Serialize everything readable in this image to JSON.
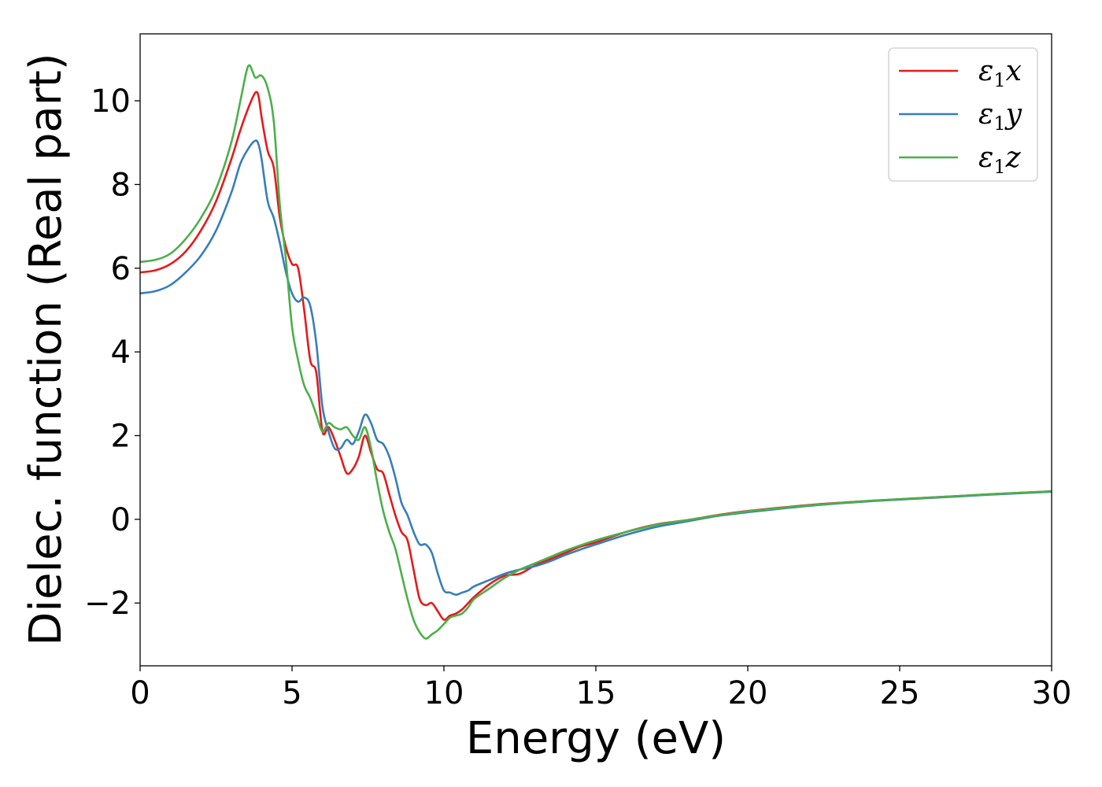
{
  "chart_data": {
    "type": "line",
    "title": "",
    "xlabel": "Energy (eV)",
    "ylabel": "Dielec. function (Real part)",
    "xlim": [
      0,
      30
    ],
    "ylim": [
      -3.5,
      11.6
    ],
    "xticks": [
      0,
      5,
      10,
      15,
      20,
      25,
      30
    ],
    "xtick_labels": [
      "0",
      "5",
      "10",
      "15",
      "20",
      "25",
      "30"
    ],
    "yticks": [
      -2,
      0,
      2,
      4,
      6,
      8,
      10
    ],
    "ytick_labels": [
      "−2",
      "0",
      "2",
      "4",
      "6",
      "8",
      "10"
    ],
    "grid": false,
    "legend_position": "top-right",
    "series": [
      {
        "name": "ε₁x",
        "legend_label": {
          "sym": "ε",
          "sub": "1",
          "var": "x"
        },
        "color": "#e41a1c",
        "x": [
          0,
          0.5,
          1,
          1.5,
          2,
          2.5,
          3,
          3.3,
          3.6,
          3.8,
          3.9,
          4.0,
          4.2,
          4.4,
          4.6,
          4.8,
          5.0,
          5.2,
          5.4,
          5.6,
          5.8,
          6.0,
          6.2,
          6.4,
          6.6,
          6.8,
          7.0,
          7.2,
          7.4,
          7.6,
          7.8,
          8.0,
          8.2,
          8.4,
          8.6,
          8.8,
          9.0,
          9.2,
          9.4,
          9.6,
          9.8,
          10.0,
          10.2,
          10.4,
          10.6,
          10.8,
          11.0,
          11.5,
          12.0,
          12.5,
          13.0,
          13.5,
          14.0,
          14.5,
          15.0,
          16.0,
          17.0,
          18.0,
          19.0,
          20.0,
          22.0,
          24.0,
          26.0,
          28.0,
          30.0
        ],
        "y": [
          5.9,
          5.95,
          6.1,
          6.4,
          6.9,
          7.6,
          8.6,
          9.3,
          9.9,
          10.2,
          10.1,
          9.6,
          8.8,
          8.4,
          7.2,
          6.5,
          6.1,
          6.0,
          5.0,
          3.8,
          3.5,
          2.1,
          2.2,
          1.9,
          1.5,
          1.1,
          1.2,
          1.5,
          2.0,
          1.6,
          1.2,
          1.1,
          0.6,
          0.1,
          -0.3,
          -0.5,
          -1.2,
          -1.9,
          -2.05,
          -2.0,
          -2.2,
          -2.4,
          -2.3,
          -2.25,
          -2.15,
          -2.0,
          -1.85,
          -1.55,
          -1.35,
          -1.3,
          -1.1,
          -0.95,
          -0.8,
          -0.65,
          -0.55,
          -0.3,
          -0.12,
          -0.02,
          0.1,
          0.2,
          0.34,
          0.44,
          0.52,
          0.6,
          0.67
        ]
      },
      {
        "name": "ε₁y",
        "legend_label": {
          "sym": "ε",
          "sub": "1",
          "var": "y"
        },
        "color": "#377eb8",
        "x": [
          0,
          0.5,
          1,
          1.5,
          2,
          2.5,
          3,
          3.3,
          3.6,
          3.8,
          3.9,
          4.0,
          4.2,
          4.4,
          4.6,
          4.8,
          5.0,
          5.2,
          5.4,
          5.6,
          5.8,
          6.0,
          6.2,
          6.4,
          6.6,
          6.8,
          7.0,
          7.2,
          7.4,
          7.6,
          7.8,
          8.0,
          8.2,
          8.4,
          8.6,
          8.8,
          9.0,
          9.2,
          9.4,
          9.6,
          9.8,
          10.0,
          10.2,
          10.4,
          10.6,
          10.8,
          11.0,
          11.5,
          12.0,
          12.5,
          13.0,
          13.5,
          14.0,
          14.5,
          15.0,
          16.0,
          17.0,
          18.0,
          19.0,
          20.0,
          22.0,
          24.0,
          26.0,
          28.0,
          30.0
        ],
        "y": [
          5.4,
          5.45,
          5.6,
          5.9,
          6.3,
          6.9,
          7.8,
          8.5,
          8.9,
          9.05,
          8.95,
          8.6,
          7.6,
          7.2,
          6.6,
          5.9,
          5.4,
          5.2,
          5.3,
          5.1,
          4.2,
          2.7,
          2.1,
          1.7,
          1.7,
          1.9,
          1.8,
          2.1,
          2.5,
          2.3,
          1.9,
          1.8,
          1.5,
          1.0,
          0.4,
          0.1,
          -0.3,
          -0.6,
          -0.6,
          -0.8,
          -1.3,
          -1.7,
          -1.75,
          -1.8,
          -1.75,
          -1.7,
          -1.6,
          -1.45,
          -1.3,
          -1.2,
          -1.12,
          -1.0,
          -0.85,
          -0.72,
          -0.6,
          -0.37,
          -0.18,
          -0.05,
          0.08,
          0.17,
          0.32,
          0.43,
          0.51,
          0.59,
          0.66
        ]
      },
      {
        "name": "ε₁z",
        "legend_label": {
          "sym": "ε",
          "sub": "1",
          "var": "z"
        },
        "color": "#4daf4a",
        "x": [
          0,
          0.5,
          1,
          1.5,
          2,
          2.5,
          3,
          3.3,
          3.5,
          3.6,
          3.7,
          3.8,
          4.0,
          4.2,
          4.4,
          4.6,
          4.8,
          5.0,
          5.2,
          5.4,
          5.6,
          5.8,
          6.0,
          6.2,
          6.4,
          6.6,
          6.8,
          7.0,
          7.2,
          7.4,
          7.6,
          7.8,
          8.0,
          8.2,
          8.4,
          8.6,
          8.8,
          9.0,
          9.2,
          9.4,
          9.6,
          9.8,
          10.0,
          10.2,
          10.4,
          10.6,
          10.8,
          11.0,
          11.5,
          12.0,
          12.5,
          13.0,
          13.5,
          14.0,
          14.5,
          15.0,
          16.0,
          17.0,
          18.0,
          19.0,
          20.0,
          22.0,
          24.0,
          26.0,
          28.0,
          30.0
        ],
        "y": [
          6.15,
          6.2,
          6.35,
          6.7,
          7.2,
          7.9,
          9.0,
          10.0,
          10.7,
          10.85,
          10.7,
          10.55,
          10.6,
          10.3,
          9.5,
          7.5,
          6.2,
          4.6,
          3.8,
          3.2,
          2.9,
          2.5,
          2.1,
          2.3,
          2.2,
          2.15,
          2.2,
          2.0,
          1.9,
          2.2,
          1.7,
          0.9,
          0.2,
          -0.3,
          -0.7,
          -1.3,
          -1.9,
          -2.4,
          -2.7,
          -2.85,
          -2.75,
          -2.65,
          -2.5,
          -2.35,
          -2.3,
          -2.25,
          -2.1,
          -1.9,
          -1.65,
          -1.4,
          -1.2,
          -1.05,
          -0.9,
          -0.75,
          -0.62,
          -0.5,
          -0.3,
          -0.13,
          -0.02,
          0.09,
          0.19,
          0.33,
          0.44,
          0.52,
          0.6,
          0.67
        ]
      }
    ]
  }
}
